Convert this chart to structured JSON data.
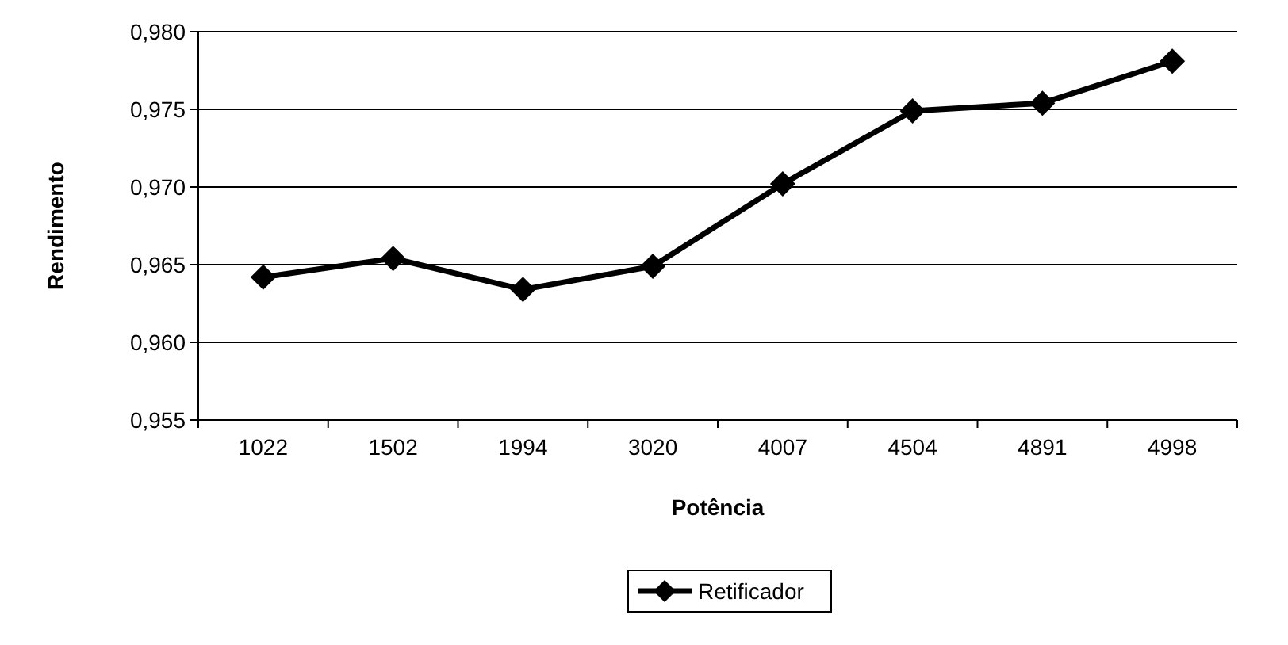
{
  "chart_data": {
    "type": "line",
    "xlabel": "Potência",
    "ylabel": "Rendimento",
    "categories": [
      "1022",
      "1502",
      "1994",
      "3020",
      "4007",
      "4504",
      "4891",
      "4998"
    ],
    "series": [
      {
        "name": "Retificador",
        "color": "#000000",
        "values": [
          0.9642,
          0.9654,
          0.9634,
          0.9649,
          0.9702,
          0.9749,
          0.9754,
          0.9781
        ]
      }
    ],
    "ylim": [
      0.955,
      0.98
    ],
    "yticks": [
      {
        "value": 0.955,
        "label": "0,955"
      },
      {
        "value": 0.96,
        "label": "0,960"
      },
      {
        "value": 0.965,
        "label": "0,965"
      },
      {
        "value": 0.97,
        "label": "0,970"
      },
      {
        "value": 0.975,
        "label": "0,975"
      },
      {
        "value": 0.98,
        "label": "0,980"
      }
    ],
    "grid": "y",
    "legend": "bottom",
    "marker": "diamond",
    "line_style": "solid"
  }
}
